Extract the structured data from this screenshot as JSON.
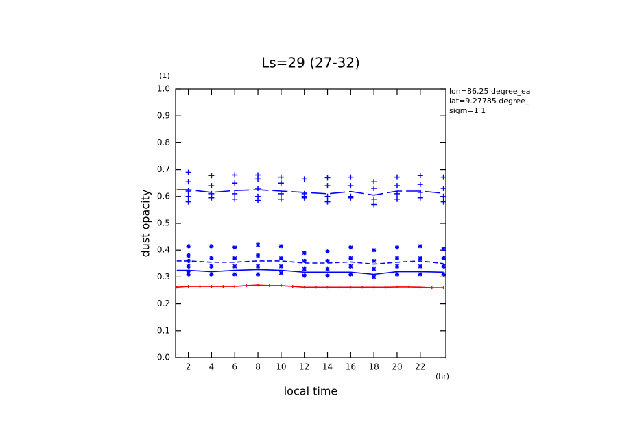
{
  "chart_data": {
    "type": "line",
    "title": "Ls=29 (27-32)",
    "x_label": "local time",
    "y_label": "dust opacity",
    "x_unit": "(hr)",
    "y_unit": "(1)",
    "annotations": [
      "lon=86.25 degree_ea",
      "lat=9.27785 degree_",
      "sigm=1 1"
    ],
    "xlim": [
      0.9,
      24.2
    ],
    "xticks": [
      2,
      4,
      6,
      8,
      10,
      12,
      14,
      16,
      18,
      20,
      22
    ],
    "ylim": [
      0,
      1
    ],
    "yticks": [
      {
        "value": 0,
        "label": "0.0"
      },
      0.1,
      0.2,
      0.3,
      0.4,
      0.5,
      0.6,
      0.7,
      0.8,
      0.9,
      {
        "value": 1,
        "label": "1.0"
      }
    ],
    "series": [
      {
        "kind": "line",
        "color": "#ff0000",
        "dash": "solid",
        "ticks": true,
        "x": [
          1,
          2,
          3,
          4,
          5,
          6,
          7,
          8,
          9,
          10,
          11,
          12,
          13,
          14,
          15,
          16,
          17,
          18,
          19,
          20,
          21,
          22,
          23,
          24
        ],
        "values": [
          0.262,
          0.265,
          0.265,
          0.265,
          0.265,
          0.265,
          0.268,
          0.27,
          0.268,
          0.268,
          0.265,
          0.262,
          0.262,
          0.262,
          0.262,
          0.262,
          0.262,
          0.262,
          0.262,
          0.263,
          0.263,
          0.262,
          0.26,
          0.26
        ]
      },
      {
        "kind": "line",
        "color": "#0000ff",
        "dash": "solid",
        "x": [
          1,
          2,
          4,
          6,
          8,
          10,
          12,
          14,
          16,
          18,
          20,
          22,
          24
        ],
        "values": [
          0.325,
          0.325,
          0.32,
          0.325,
          0.328,
          0.325,
          0.318,
          0.318,
          0.318,
          0.31,
          0.32,
          0.32,
          0.318
        ]
      },
      {
        "kind": "line",
        "color": "#0000ff",
        "dash": "dashed",
        "x": [
          1,
          2,
          4,
          6,
          8,
          10,
          12,
          14,
          16,
          18,
          20,
          22,
          24
        ],
        "values": [
          0.36,
          0.36,
          0.355,
          0.355,
          0.36,
          0.36,
          0.352,
          0.352,
          0.356,
          0.348,
          0.355,
          0.36,
          0.35
        ]
      },
      {
        "kind": "line",
        "color": "#0000ff",
        "dash": "longdash",
        "x": [
          1,
          2,
          4,
          6,
          8,
          10,
          12,
          14,
          16,
          18,
          20,
          22,
          24
        ],
        "values": [
          0.625,
          0.625,
          0.615,
          0.622,
          0.625,
          0.62,
          0.615,
          0.61,
          0.618,
          0.605,
          0.62,
          0.62,
          0.612
        ]
      },
      {
        "kind": "scatter",
        "color": "#0000ff",
        "marker": "plus",
        "x": [
          2,
          2,
          2,
          2,
          2,
          4,
          4,
          4,
          4,
          6,
          6,
          6,
          6,
          8,
          8,
          8,
          8,
          8,
          10,
          10,
          10,
          10,
          12,
          12,
          12,
          12,
          14,
          14,
          14,
          14,
          16,
          16,
          16,
          16,
          18,
          18,
          18,
          18,
          20,
          20,
          20,
          20,
          22,
          22,
          22,
          22,
          24,
          24,
          24,
          24
        ],
        "values": [
          0.69,
          0.655,
          0.62,
          0.6,
          0.58,
          0.678,
          0.64,
          0.61,
          0.595,
          0.68,
          0.65,
          0.61,
          0.59,
          0.68,
          0.665,
          0.63,
          0.6,
          0.585,
          0.672,
          0.65,
          0.61,
          0.59,
          0.665,
          0.61,
          0.6,
          0.595,
          0.67,
          0.64,
          0.6,
          0.58,
          0.672,
          0.64,
          0.6,
          0.595,
          0.655,
          0.63,
          0.59,
          0.57,
          0.672,
          0.64,
          0.61,
          0.59,
          0.678,
          0.645,
          0.615,
          0.595,
          0.672,
          0.63,
          0.6,
          0.58
        ]
      },
      {
        "kind": "scatter",
        "color": "#0000ff",
        "marker": "star",
        "x": [
          2,
          2,
          2,
          2,
          2,
          2,
          4,
          4,
          4,
          4,
          6,
          6,
          6,
          6,
          8,
          8,
          8,
          8,
          10,
          10,
          10,
          10,
          12,
          12,
          12,
          12,
          14,
          14,
          14,
          14,
          16,
          16,
          16,
          16,
          18,
          18,
          18,
          18,
          20,
          20,
          20,
          20,
          22,
          22,
          22,
          22,
          24,
          24,
          24,
          24
        ],
        "values": [
          0.415,
          0.38,
          0.36,
          0.34,
          0.32,
          0.31,
          0.415,
          0.37,
          0.34,
          0.31,
          0.41,
          0.37,
          0.34,
          0.31,
          0.42,
          0.38,
          0.34,
          0.31,
          0.415,
          0.37,
          0.34,
          0.315,
          0.39,
          0.36,
          0.33,
          0.305,
          0.395,
          0.36,
          0.33,
          0.305,
          0.41,
          0.37,
          0.34,
          0.31,
          0.4,
          0.36,
          0.33,
          0.3,
          0.41,
          0.37,
          0.34,
          0.31,
          0.415,
          0.37,
          0.34,
          0.31,
          0.405,
          0.37,
          0.34,
          0.31
        ]
      }
    ]
  }
}
